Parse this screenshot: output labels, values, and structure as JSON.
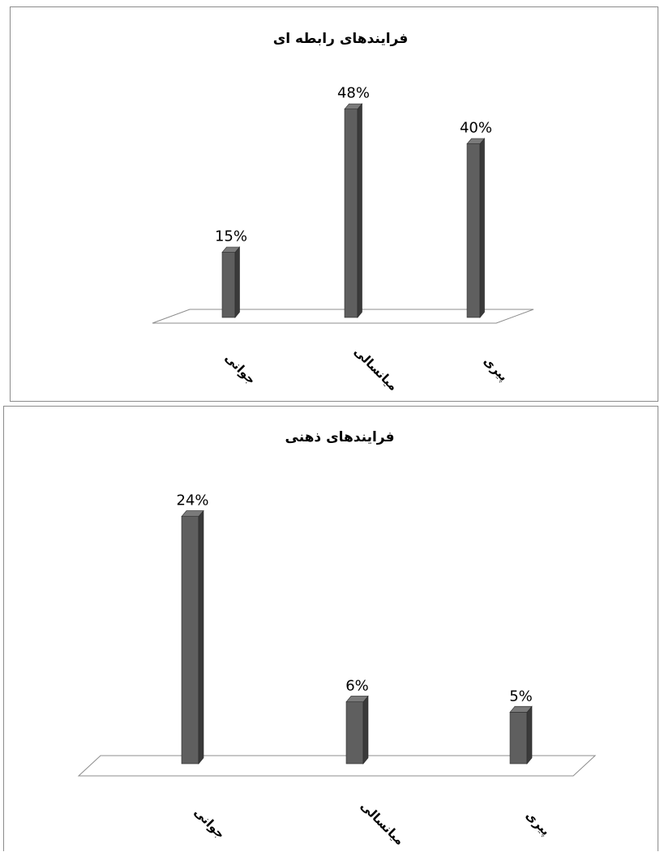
{
  "charts": {
    "colors": {
      "bar_front": "#5f5f5f",
      "bar_side": "#3a3a3a",
      "bar_top": "#7a7a7a",
      "floor": "#ffffff",
      "floor_stroke": "#8c8c8c"
    }
  },
  "chart_data": [
    {
      "type": "bar",
      "title": "فرایندهای رابطه ای",
      "categories": [
        "جوانی",
        "میانسالی",
        "پیری"
      ],
      "values": [
        15,
        48,
        40
      ],
      "value_labels": [
        "15%",
        "48%",
        "40%"
      ],
      "ylim": [
        0,
        50
      ],
      "grid": false,
      "legend": "none"
    },
    {
      "type": "bar",
      "title": "فرایندهای ذهنی",
      "categories": [
        "جوانی",
        "میانسالی",
        "پیری"
      ],
      "values": [
        24,
        6,
        5
      ],
      "value_labels": [
        "24%",
        "6%",
        "5%"
      ],
      "ylim": [
        0,
        25
      ],
      "grid": false,
      "legend": "none"
    }
  ]
}
